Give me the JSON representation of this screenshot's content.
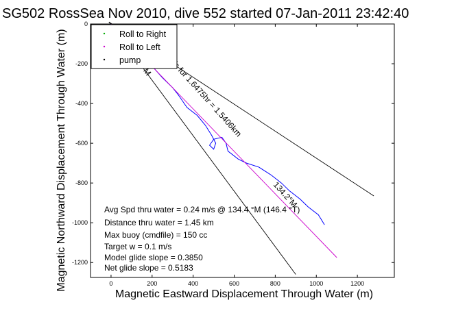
{
  "chart_data": {
    "type": "line",
    "title": "SG502 RossSea Nov 2010, dive 552 started 07-Jan-2011 23:42:40",
    "xlabel": "Magnetic Eastward Displacement Through Water (m)",
    "ylabel": "Magnetic Northward Displacement Through Water (m)",
    "xlim": [
      -100,
      1380
    ],
    "ylim": [
      -1275,
      0
    ],
    "xticks": [
      0,
      200,
      400,
      600,
      800,
      1000,
      1200
    ],
    "yticks": [
      0,
      -200,
      -400,
      -600,
      -800,
      -1000,
      -1200
    ],
    "grid": false,
    "legend": {
      "placement": "top-left",
      "entries": [
        {
          "label": "Roll to Right",
          "color": "#00aa00",
          "marker": "."
        },
        {
          "label": "Roll to Left",
          "color": "#cc00cc",
          "marker": "."
        },
        {
          "label": "pump",
          "color": "#000000",
          "marker": "."
        }
      ]
    },
    "series": [
      {
        "style": "track",
        "color": "#0000ff",
        "points": [
          [
            -5,
            0
          ],
          [
            20,
            -20
          ],
          [
            60,
            -60
          ],
          [
            120,
            -120
          ],
          [
            190,
            -200
          ],
          [
            250,
            -270
          ],
          [
            300,
            -320
          ],
          [
            330,
            -360
          ],
          [
            370,
            -420
          ],
          [
            420,
            -460
          ],
          [
            460,
            -510
          ],
          [
            490,
            -560
          ],
          [
            510,
            -600
          ],
          [
            500,
            -630
          ],
          [
            480,
            -610
          ],
          [
            500,
            -580
          ],
          [
            540,
            -570
          ],
          [
            560,
            -600
          ],
          [
            570,
            -640
          ],
          [
            620,
            -680
          ],
          [
            660,
            -700
          ],
          [
            720,
            -720
          ],
          [
            780,
            -760
          ],
          [
            830,
            -800
          ],
          [
            870,
            -840
          ],
          [
            920,
            -880
          ],
          [
            960,
            -920
          ],
          [
            1010,
            -960
          ],
          [
            1040,
            -1010
          ]
        ]
      },
      {
        "style": "heading-line",
        "color": "#cc00cc",
        "points": [
          [
            0,
            0
          ],
          [
            1100,
            -1175
          ]
        ]
      },
      {
        "style": "envelope",
        "color": "#000000",
        "points": [
          [
            -10,
            10
          ],
          [
            1280,
            -865
          ]
        ]
      },
      {
        "style": "envelope",
        "color": "#000000",
        "points": [
          [
            -10,
            10
          ],
          [
            900,
            -1260
          ]
        ]
      }
    ],
    "annotations": {
      "heading_rot1": "m/s for 1.6475hr = 1.5406km",
      "heading_rot2": "134.2°M",
      "heading_rot3": "°M",
      "stats": [
        "Avg Spd thru water =  0.24 m/s @ 134.4 °M (146.4 °T)",
        "Distance thru water =  1.45 km",
        "Max buoy (cmdfile) = 150 cc",
        "Target w = 0.1 m/s",
        "Model glide slope = 0.3850",
        "Net glide slope = 0.5183"
      ]
    }
  }
}
